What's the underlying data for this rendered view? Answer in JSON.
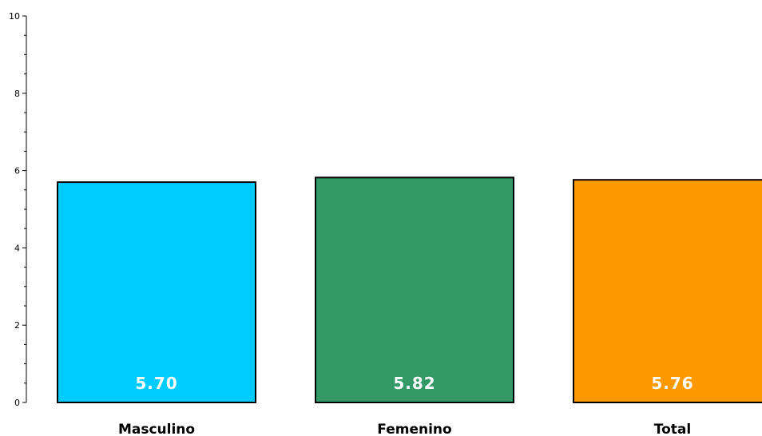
{
  "chart_data": {
    "type": "bar",
    "categories": [
      "Masculino",
      "Femenino",
      "Total"
    ],
    "values": [
      5.7,
      5.82,
      5.76
    ],
    "value_labels": [
      "5.70",
      "5.82",
      "5.76"
    ],
    "colors": [
      "#00ccff",
      "#339966",
      "#ff9900"
    ],
    "title": "",
    "xlabel": "",
    "ylabel": "",
    "ylim": [
      0,
      10
    ],
    "yticks": [
      0,
      2,
      4,
      6,
      8,
      10
    ],
    "ytick_labels": [
      "0",
      "2",
      "4",
      "6",
      "8",
      "10"
    ],
    "grid": false,
    "legend": "none"
  }
}
